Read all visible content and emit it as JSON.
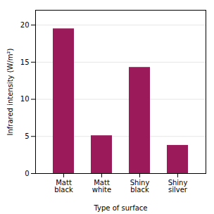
{
  "chart_data": {
    "type": "bar",
    "categories": [
      "Matt\nblack",
      "Matt\nwhite",
      "Shiny\nblack",
      "Shiny\nsilver"
    ],
    "values": [
      19.5,
      5.1,
      14.3,
      3.8
    ],
    "color": "#9B1B5A",
    "xlabel": "Type of surface",
    "ylabel": "Infrared intensity (W/m²)",
    "ylim": [
      0,
      22
    ],
    "yticks": [
      0,
      5,
      10,
      15,
      20
    ],
    "grid": true
  }
}
